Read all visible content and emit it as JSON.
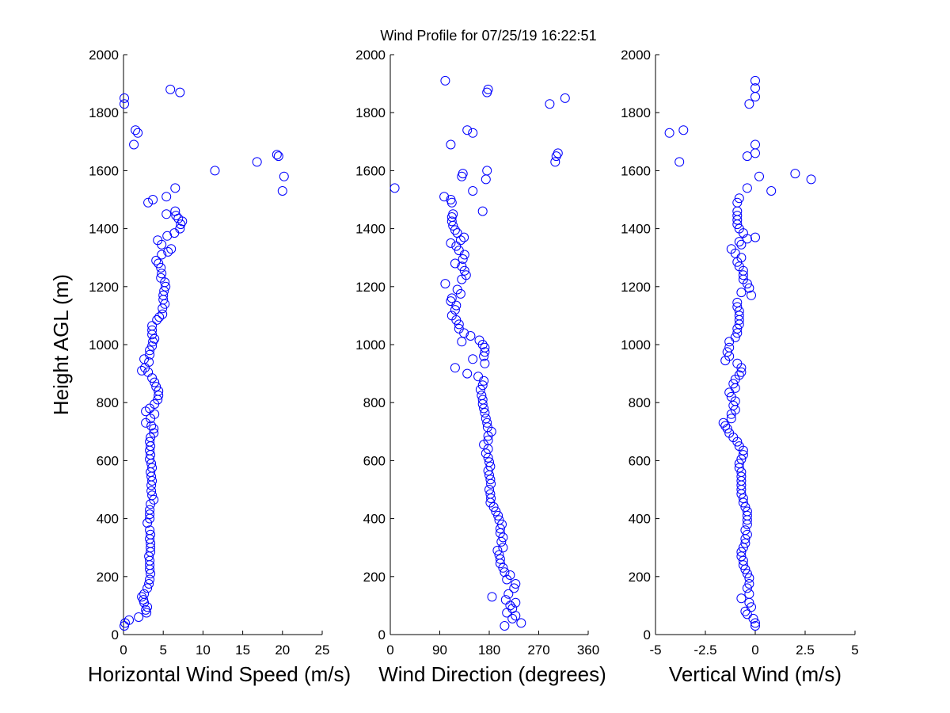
{
  "figure": {
    "title": "Wind Profile for  07/25/19 16:22:51",
    "ylabel": "Height AGL (m)"
  },
  "chart_data": [
    {
      "type": "scatter",
      "title": "Wind Profile for  07/25/19 16:22:51",
      "xlabel": "Horizontal Wind Speed (m/s)",
      "ylabel": "Height AGL (m)",
      "xlim": [
        0,
        25
      ],
      "ylim": [
        0,
        2000
      ],
      "xticks": [
        "0",
        "5",
        "10",
        "15",
        "20",
        "25"
      ],
      "yticks": [
        "0",
        "200",
        "400",
        "600",
        "800",
        "1000",
        "1200",
        "1400",
        "1600",
        "1800",
        "2000"
      ],
      "marker": "open-circle",
      "color": "#0000ff",
      "grid": false,
      "points": [
        [
          0.1,
          30
        ],
        [
          0.2,
          40
        ],
        [
          0.7,
          50
        ],
        [
          1.9,
          60
        ],
        [
          2.9,
          75
        ],
        [
          2.8,
          85
        ],
        [
          3.0,
          95
        ],
        [
          2.6,
          110
        ],
        [
          2.5,
          120
        ],
        [
          2.3,
          130
        ],
        [
          2.6,
          140
        ],
        [
          3.0,
          160
        ],
        [
          3.2,
          175
        ],
        [
          3.3,
          190
        ],
        [
          3.4,
          210
        ],
        [
          3.3,
          225
        ],
        [
          3.3,
          240
        ],
        [
          3.3,
          255
        ],
        [
          3.2,
          270
        ],
        [
          3.4,
          285
        ],
        [
          3.4,
          300
        ],
        [
          3.4,
          315
        ],
        [
          3.3,
          330
        ],
        [
          3.4,
          345
        ],
        [
          3.3,
          360
        ],
        [
          3.0,
          385
        ],
        [
          3.3,
          400
        ],
        [
          3.3,
          415
        ],
        [
          3.3,
          430
        ],
        [
          3.4,
          450
        ],
        [
          3.8,
          465
        ],
        [
          3.6,
          480
        ],
        [
          3.5,
          495
        ],
        [
          3.5,
          515
        ],
        [
          3.6,
          530
        ],
        [
          3.5,
          545
        ],
        [
          3.4,
          560
        ],
        [
          3.6,
          575
        ],
        [
          3.5,
          590
        ],
        [
          3.3,
          605
        ],
        [
          3.4,
          620
        ],
        [
          3.3,
          635
        ],
        [
          3.4,
          650
        ],
        [
          3.3,
          665
        ],
        [
          3.4,
          680
        ],
        [
          3.8,
          695
        ],
        [
          3.8,
          710
        ],
        [
          3.5,
          720
        ],
        [
          2.8,
          730
        ],
        [
          3.4,
          745
        ],
        [
          3.9,
          760
        ],
        [
          2.8,
          770
        ],
        [
          3.3,
          780
        ],
        [
          3.9,
          795
        ],
        [
          4.3,
          810
        ],
        [
          4.4,
          825
        ],
        [
          4.4,
          840
        ],
        [
          4.1,
          855
        ],
        [
          3.9,
          870
        ],
        [
          3.6,
          885
        ],
        [
          3.1,
          905
        ],
        [
          2.3,
          910
        ],
        [
          2.7,
          920
        ],
        [
          3.2,
          940
        ],
        [
          2.6,
          950
        ],
        [
          3.3,
          965
        ],
        [
          3.3,
          980
        ],
        [
          3.6,
          995
        ],
        [
          3.7,
          1010
        ],
        [
          3.9,
          1020
        ],
        [
          3.6,
          1035
        ],
        [
          3.6,
          1050
        ],
        [
          3.6,
          1065
        ],
        [
          4.2,
          1085
        ],
        [
          4.5,
          1095
        ],
        [
          4.9,
          1105
        ],
        [
          4.9,
          1125
        ],
        [
          5.2,
          1140
        ],
        [
          5.0,
          1155
        ],
        [
          5.0,
          1170
        ],
        [
          5.1,
          1185
        ],
        [
          5.3,
          1200
        ],
        [
          5.2,
          1215
        ],
        [
          4.7,
          1230
        ],
        [
          4.8,
          1245
        ],
        [
          4.7,
          1265
        ],
        [
          4.4,
          1280
        ],
        [
          4.1,
          1290
        ],
        [
          4.8,
          1310
        ],
        [
          5.6,
          1320
        ],
        [
          6.0,
          1330
        ],
        [
          4.8,
          1345
        ],
        [
          4.3,
          1360
        ],
        [
          5.5,
          1375
        ],
        [
          6.4,
          1385
        ],
        [
          7.1,
          1400
        ],
        [
          7.2,
          1415
        ],
        [
          7.4,
          1425
        ],
        [
          6.9,
          1435
        ],
        [
          6.6,
          1445
        ],
        [
          6.5,
          1460
        ],
        [
          5.4,
          1450
        ],
        [
          3.1,
          1490
        ],
        [
          3.7,
          1500
        ],
        [
          5.4,
          1510
        ],
        [
          6.5,
          1540
        ],
        [
          11.5,
          1600
        ],
        [
          16.8,
          1630
        ],
        [
          19.3,
          1655
        ],
        [
          19.5,
          1650
        ],
        [
          20.2,
          1580
        ],
        [
          20.0,
          1530
        ],
        [
          1.3,
          1690
        ],
        [
          1.5,
          1740
        ],
        [
          1.8,
          1730
        ],
        [
          0.1,
          1830
        ],
        [
          0.1,
          1850
        ],
        [
          5.9,
          1880
        ],
        [
          7.1,
          1870
        ]
      ]
    },
    {
      "type": "scatter",
      "xlabel": "Wind Direction (degrees)",
      "xlim": [
        0,
        360
      ],
      "ylim": [
        0,
        2000
      ],
      "xticks": [
        "0",
        "90",
        "180",
        "270",
        "360"
      ],
      "yticks": [
        "0",
        "200",
        "400",
        "600",
        "800",
        "1000",
        "1200",
        "1400",
        "1600",
        "1800",
        "2000"
      ],
      "marker": "open-circle",
      "color": "#0000ff",
      "grid": false,
      "points": [
        [
          208,
          30
        ],
        [
          238,
          40
        ],
        [
          222,
          55
        ],
        [
          228,
          65
        ],
        [
          212,
          75
        ],
        [
          222,
          90
        ],
        [
          218,
          100
        ],
        [
          228,
          110
        ],
        [
          210,
          120
        ],
        [
          185,
          130
        ],
        [
          215,
          140
        ],
        [
          225,
          160
        ],
        [
          228,
          175
        ],
        [
          212,
          190
        ],
        [
          218,
          205
        ],
        [
          208,
          215
        ],
        [
          205,
          230
        ],
        [
          200,
          245
        ],
        [
          200,
          260
        ],
        [
          198,
          275
        ],
        [
          195,
          290
        ],
        [
          205,
          300
        ],
        [
          202,
          320
        ],
        [
          205,
          335
        ],
        [
          200,
          350
        ],
        [
          200,
          365
        ],
        [
          203,
          380
        ],
        [
          198,
          395
        ],
        [
          196,
          410
        ],
        [
          192,
          425
        ],
        [
          188,
          440
        ],
        [
          182,
          455
        ],
        [
          183,
          470
        ],
        [
          182,
          485
        ],
        [
          180,
          500
        ],
        [
          183,
          520
        ],
        [
          182,
          535
        ],
        [
          180,
          550
        ],
        [
          178,
          565
        ],
        [
          182,
          580
        ],
        [
          180,
          595
        ],
        [
          178,
          610
        ],
        [
          174,
          625
        ],
        [
          178,
          640
        ],
        [
          170,
          655
        ],
        [
          178,
          670
        ],
        [
          178,
          685
        ],
        [
          184,
          700
        ],
        [
          177,
          715
        ],
        [
          176,
          730
        ],
        [
          174,
          745
        ],
        [
          172,
          765
        ],
        [
          170,
          780
        ],
        [
          168,
          795
        ],
        [
          168,
          810
        ],
        [
          166,
          825
        ],
        [
          164,
          845
        ],
        [
          168,
          860
        ],
        [
          170,
          875
        ],
        [
          160,
          890
        ],
        [
          140,
          900
        ],
        [
          118,
          920
        ],
        [
          172,
          935
        ],
        [
          150,
          950
        ],
        [
          170,
          960
        ],
        [
          172,
          975
        ],
        [
          172,
          990
        ],
        [
          168,
          1000
        ],
        [
          162,
          1015
        ],
        [
          146,
          1030
        ],
        [
          130,
          1010
        ],
        [
          134,
          1040
        ],
        [
          125,
          1055
        ],
        [
          125,
          1070
        ],
        [
          120,
          1085
        ],
        [
          112,
          1100
        ],
        [
          118,
          1120
        ],
        [
          120,
          1135
        ],
        [
          110,
          1150
        ],
        [
          112,
          1160
        ],
        [
          128,
          1175
        ],
        [
          122,
          1190
        ],
        [
          100,
          1210
        ],
        [
          130,
          1225
        ],
        [
          138,
          1240
        ],
        [
          135,
          1255
        ],
        [
          130,
          1270
        ],
        [
          118,
          1280
        ],
        [
          132,
          1295
        ],
        [
          135,
          1310
        ],
        [
          125,
          1325
        ],
        [
          120,
          1340
        ],
        [
          110,
          1350
        ],
        [
          128,
          1360
        ],
        [
          134,
          1370
        ],
        [
          122,
          1385
        ],
        [
          118,
          1395
        ],
        [
          114,
          1410
        ],
        [
          112,
          1425
        ],
        [
          112,
          1440
        ],
        [
          114,
          1450
        ],
        [
          168,
          1460
        ],
        [
          112,
          1490
        ],
        [
          110,
          1500
        ],
        [
          98,
          1510
        ],
        [
          8,
          1540
        ],
        [
          150,
          1530
        ],
        [
          130,
          1580
        ],
        [
          132,
          1590
        ],
        [
          174,
          1570
        ],
        [
          176,
          1600
        ],
        [
          300,
          1630
        ],
        [
          302,
          1650
        ],
        [
          305,
          1660
        ],
        [
          110,
          1690
        ],
        [
          150,
          1730
        ],
        [
          140,
          1740
        ],
        [
          290,
          1830
        ],
        [
          318,
          1850
        ],
        [
          176,
          1870
        ],
        [
          178,
          1880
        ],
        [
          100,
          1910
        ]
      ]
    },
    {
      "type": "scatter",
      "xlabel": "Vertical Wind (m/s)",
      "xlim": [
        -5,
        5
      ],
      "ylim": [
        0,
        2000
      ],
      "xticks": [
        "-5",
        "-2.5",
        "0",
        "2.5",
        "5"
      ],
      "yticks": [
        "0",
        "200",
        "400",
        "600",
        "800",
        "1000",
        "1200",
        "1400",
        "1600",
        "1800",
        "2000"
      ],
      "marker": "open-circle",
      "color": "#0000ff",
      "grid": false,
      "points": [
        [
          0.0,
          30
        ],
        [
          0.0,
          40
        ],
        [
          -0.1,
          55
        ],
        [
          -0.4,
          70
        ],
        [
          -0.5,
          80
        ],
        [
          -0.2,
          95
        ],
        [
          -0.3,
          110
        ],
        [
          -0.7,
          125
        ],
        [
          -0.3,
          140
        ],
        [
          -0.4,
          160
        ],
        [
          -0.3,
          175
        ],
        [
          -0.3,
          195
        ],
        [
          -0.4,
          210
        ],
        [
          -0.5,
          225
        ],
        [
          -0.6,
          240
        ],
        [
          -0.6,
          255
        ],
        [
          -0.7,
          270
        ],
        [
          -0.7,
          285
        ],
        [
          -0.6,
          300
        ],
        [
          -0.5,
          315
        ],
        [
          -0.5,
          330
        ],
        [
          -0.4,
          345
        ],
        [
          -0.5,
          360
        ],
        [
          -0.4,
          380
        ],
        [
          -0.4,
          395
        ],
        [
          -0.4,
          410
        ],
        [
          -0.4,
          425
        ],
        [
          -0.5,
          440
        ],
        [
          -0.6,
          455
        ],
        [
          -0.6,
          470
        ],
        [
          -0.7,
          485
        ],
        [
          -0.7,
          500
        ],
        [
          -0.7,
          515
        ],
        [
          -0.7,
          530
        ],
        [
          -0.7,
          545
        ],
        [
          -0.7,
          560
        ],
        [
          -0.8,
          575
        ],
        [
          -0.8,
          590
        ],
        [
          -0.7,
          605
        ],
        [
          -0.6,
          620
        ],
        [
          -0.6,
          635
        ],
        [
          -0.8,
          650
        ],
        [
          -0.9,
          665
        ],
        [
          -1.1,
          680
        ],
        [
          -1.3,
          695
        ],
        [
          -1.4,
          710
        ],
        [
          -1.5,
          720
        ],
        [
          -1.6,
          730
        ],
        [
          -1.2,
          745
        ],
        [
          -1.2,
          760
        ],
        [
          -1.0,
          775
        ],
        [
          -1.1,
          790
        ],
        [
          -1.0,
          805
        ],
        [
          -1.2,
          820
        ],
        [
          -1.3,
          835
        ],
        [
          -1.0,
          850
        ],
        [
          -1.1,
          865
        ],
        [
          -1.0,
          880
        ],
        [
          -0.8,
          895
        ],
        [
          -0.7,
          905
        ],
        [
          -0.7,
          920
        ],
        [
          -0.9,
          935
        ],
        [
          -1.5,
          945
        ],
        [
          -1.3,
          960
        ],
        [
          -1.4,
          975
        ],
        [
          -1.3,
          990
        ],
        [
          -1.3,
          1010
        ],
        [
          -1.0,
          1025
        ],
        [
          -0.9,
          1040
        ],
        [
          -0.9,
          1055
        ],
        [
          -0.8,
          1070
        ],
        [
          -0.8,
          1085
        ],
        [
          -0.8,
          1100
        ],
        [
          -0.8,
          1115
        ],
        [
          -0.9,
          1130
        ],
        [
          -0.9,
          1145
        ],
        [
          -0.2,
          1170
        ],
        [
          -0.7,
          1180
        ],
        [
          -0.3,
          1195
        ],
        [
          -0.4,
          1210
        ],
        [
          -0.6,
          1225
        ],
        [
          -0.6,
          1240
        ],
        [
          -0.6,
          1255
        ],
        [
          -0.8,
          1270
        ],
        [
          -0.9,
          1285
        ],
        [
          -0.7,
          1300
        ],
        [
          -1.0,
          1315
        ],
        [
          -1.2,
          1330
        ],
        [
          -0.7,
          1345
        ],
        [
          -0.8,
          1355
        ],
        [
          -0.4,
          1365
        ],
        [
          0.0,
          1370
        ],
        [
          -0.6,
          1385
        ],
        [
          -0.8,
          1400
        ],
        [
          -0.9,
          1415
        ],
        [
          -0.9,
          1430
        ],
        [
          -0.9,
          1445
        ],
        [
          -0.9,
          1460
        ],
        [
          -0.9,
          1490
        ],
        [
          -0.8,
          1505
        ],
        [
          -0.4,
          1540
        ],
        [
          0.8,
          1530
        ],
        [
          0.2,
          1580
        ],
        [
          2.0,
          1590
        ],
        [
          2.8,
          1570
        ],
        [
          -3.8,
          1630
        ],
        [
          -0.4,
          1650
        ],
        [
          0.0,
          1660
        ],
        [
          0.0,
          1690
        ],
        [
          -4.3,
          1730
        ],
        [
          -3.6,
          1740
        ],
        [
          -0.3,
          1830
        ],
        [
          0.0,
          1855
        ],
        [
          0.0,
          1885
        ],
        [
          0.0,
          1910
        ]
      ]
    }
  ]
}
